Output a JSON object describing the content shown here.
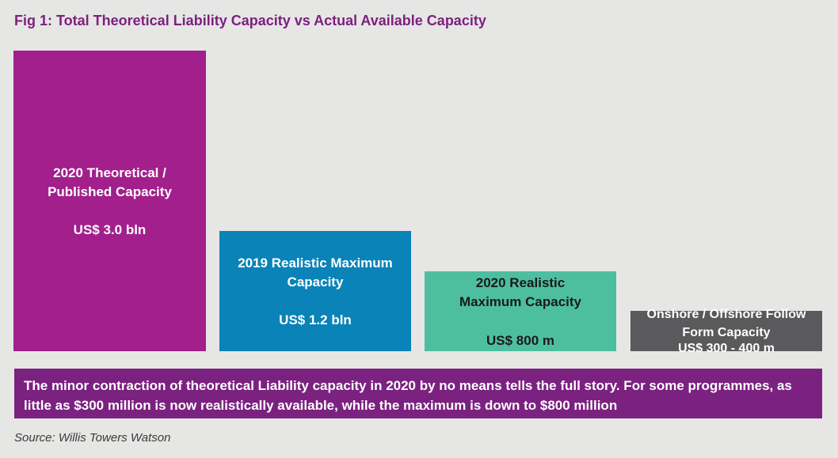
{
  "chart_data": {
    "type": "bar",
    "title": "Fig 1: Total Theoretical Liability Capacity vs Actual Available Capacity",
    "series": [
      {
        "values": [
          3000,
          1200,
          800,
          400
        ]
      }
    ],
    "bars": [
      {
        "label": "2020 Theoretical /\nPublished Capacity",
        "value_label": "US$ 3.0 bln",
        "value": 3000,
        "color": "#a21f8c",
        "text_color": "#ffffff"
      },
      {
        "label": "2019 Realistic Maximum\nCapacity",
        "value_label": "US$ 1.2 bln",
        "value": 1200,
        "color": "#0a83b8",
        "text_color": "#ffffff"
      },
      {
        "label": "2020 Realistic\nMaximum Capacity",
        "value_label": "US$ 800 m",
        "value": 800,
        "color": "#4dbfa0",
        "text_color": "#1a1a1a"
      },
      {
        "label": "Onshore / Offshore Follow\nForm Capacity",
        "value_label": "US$ 300 - 400 m",
        "value": 400,
        "color": "#5a5a5c",
        "text_color": "#ffffff"
      }
    ],
    "ylim": [
      0,
      3000
    ],
    "grid": false,
    "legend": "none"
  },
  "callout": {
    "text": "The minor contraction of theoretical Liability capacity in 2020 by no means tells the full story. For some programmes, as little as $300 million is now realistically available, while the maximum is down to $800 million"
  },
  "source": "Source: Willis Towers Watson"
}
